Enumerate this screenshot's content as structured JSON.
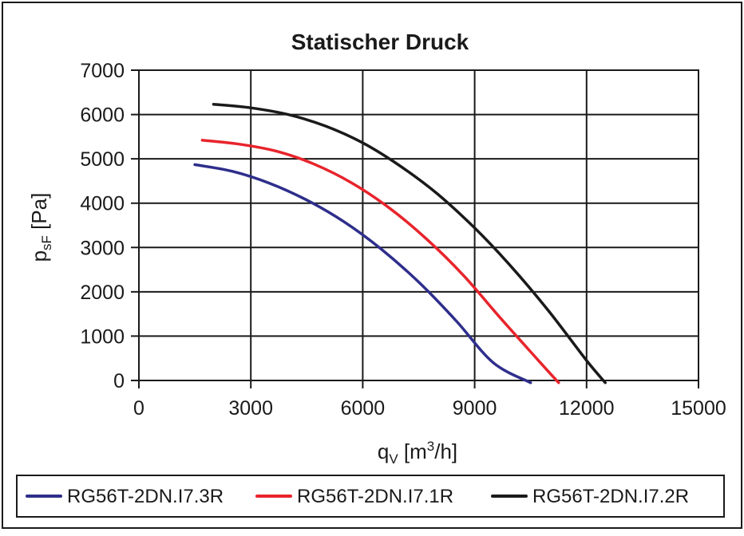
{
  "chart_data": {
    "type": "line",
    "title": "Statischer Druck",
    "xlabel": {
      "main": "q",
      "sub": "V",
      "unit_pre": " [m",
      "sup": "3",
      "unit_post": "/h]"
    },
    "ylabel": {
      "main": "p",
      "sub": "sF",
      "unit": " [Pa]"
    },
    "xlim": [
      0,
      15000
    ],
    "ylim": [
      0,
      7000
    ],
    "xticks": [
      0,
      3000,
      6000,
      9000,
      12000,
      15000
    ],
    "xtick_labels": [
      "0",
      "3000",
      "6000",
      "9000",
      "12000",
      "15000"
    ],
    "yticks": [
      0,
      1000,
      2000,
      3000,
      4000,
      5000,
      6000,
      7000
    ],
    "ytick_labels": [
      "0",
      "1000",
      "2000",
      "3000",
      "4000",
      "5000",
      "6000",
      "7000"
    ],
    "grid": true,
    "legend_position": "bottom",
    "series": [
      {
        "name": "RG56T-2DN.I7.3R",
        "color": "#2e2e8c",
        "x": [
          1500,
          2500,
          3500,
          4500,
          5500,
          6500,
          7500,
          8500,
          9500,
          10500
        ],
        "y": [
          4870,
          4720,
          4450,
          4070,
          3580,
          2960,
          2220,
          1350,
          400,
          -50
        ]
      },
      {
        "name": "RG56T-2DN.I7.1R",
        "color": "#e8242c",
        "x": [
          1700,
          2700,
          3700,
          4700,
          5700,
          6700,
          7700,
          8700,
          9700,
          10700,
          11250
        ],
        "y": [
          5420,
          5330,
          5170,
          4880,
          4460,
          3900,
          3200,
          2370,
          1400,
          460,
          -50
        ]
      },
      {
        "name": "RG56T-2DN.I7.2R",
        "color": "#1a1a1a",
        "x": [
          2000,
          3000,
          4000,
          5000,
          6000,
          7000,
          8000,
          9000,
          10000,
          11000,
          12000,
          12500
        ],
        "y": [
          6230,
          6150,
          6000,
          5740,
          5360,
          4840,
          4210,
          3440,
          2550,
          1550,
          450,
          -50
        ]
      }
    ]
  }
}
